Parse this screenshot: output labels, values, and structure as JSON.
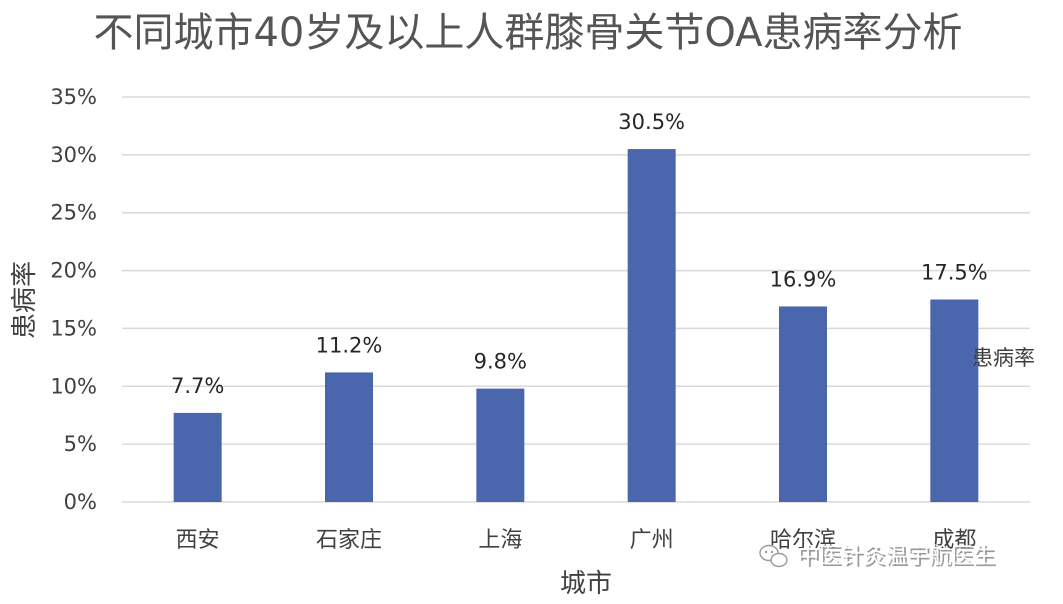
{
  "chart_data": {
    "type": "bar",
    "title": "不同城市40岁及以上人群膝骨关节OA患病率分析",
    "xlabel": "城市",
    "ylabel": "患病率",
    "categories": [
      "西安",
      "石家庄",
      "上海",
      "广州",
      "哈尔滨",
      "成都"
    ],
    "series": [
      {
        "name": "患病率",
        "values": [
          7.7,
          11.2,
          9.8,
          30.5,
          16.9,
          17.5
        ]
      }
    ],
    "data_labels": [
      "7.7%",
      "11.2%",
      "9.8%",
      "30.5%",
      "16.9%",
      "17.5%"
    ],
    "ylim": [
      0,
      35
    ],
    "yticks": [
      0,
      5,
      10,
      15,
      20,
      25,
      30,
      35
    ],
    "ytick_labels": [
      "0%",
      "5%",
      "10%",
      "15%",
      "20%",
      "25%",
      "30%",
      "35%"
    ],
    "grid": true,
    "legend_position": "right",
    "bar_color": "#4A67AE",
    "grid_color": "#D9D9D9"
  },
  "watermark": {
    "text": "中医针灸温宇航医生",
    "icon": "wechat-icon"
  }
}
